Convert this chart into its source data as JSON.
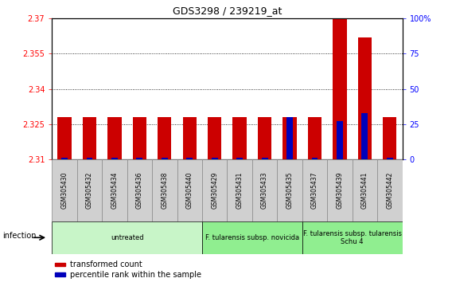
{
  "title": "GDS3298 / 239219_at",
  "samples": [
    "GSM305430",
    "GSM305432",
    "GSM305434",
    "GSM305436",
    "GSM305438",
    "GSM305440",
    "GSM305429",
    "GSM305431",
    "GSM305433",
    "GSM305435",
    "GSM305437",
    "GSM305439",
    "GSM305441",
    "GSM305442"
  ],
  "red_values": [
    2.328,
    2.328,
    2.328,
    2.328,
    2.328,
    2.328,
    2.328,
    2.328,
    2.328,
    2.328,
    2.328,
    2.37,
    2.362,
    2.328
  ],
  "blue_values": [
    1.0,
    1.0,
    1.0,
    1.0,
    1.0,
    1.0,
    1.0,
    1.0,
    1.0,
    30.0,
    1.0,
    27.0,
    33.0,
    1.0
  ],
  "ylim_left": [
    2.31,
    2.37
  ],
  "ylim_right": [
    0,
    100
  ],
  "yticks_left": [
    2.31,
    2.325,
    2.34,
    2.355,
    2.37
  ],
  "yticks_right": [
    0,
    25,
    50,
    75,
    100
  ],
  "ytick_labels_left": [
    "2.31",
    "2.325",
    "2.34",
    "2.355",
    "2.37"
  ],
  "ytick_labels_right": [
    "0",
    "25",
    "50",
    "75",
    "100%"
  ],
  "groups": [
    {
      "label": "untreated",
      "start": 0,
      "end": 5
    },
    {
      "label": "F. tularensis subsp. novicida",
      "start": 6,
      "end": 9
    },
    {
      "label": "F. tularensis subsp. tularensis\nSchu 4",
      "start": 10,
      "end": 13
    }
  ],
  "group_colors": [
    "#c8f5c8",
    "#90ee90",
    "#90ee90"
  ],
  "group_label": "infection",
  "legend_red": "transformed count",
  "legend_blue": "percentile rank within the sample",
  "bar_color_red": "#cc0000",
  "bar_color_blue": "#0000bb",
  "bar_width": 0.55,
  "blue_bar_width": 0.25,
  "baseline": 2.31,
  "xtick_bg": "#d0d0d0",
  "xtick_border": "#888888"
}
